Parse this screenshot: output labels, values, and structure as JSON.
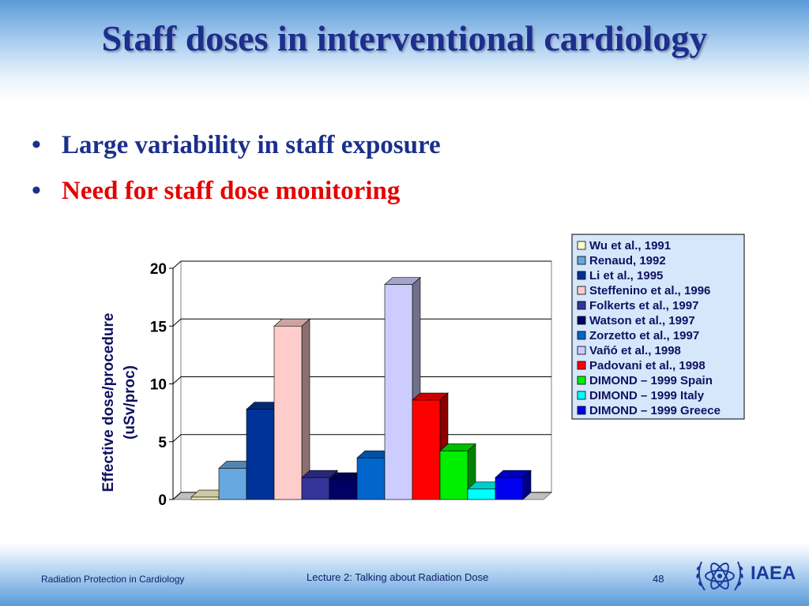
{
  "slide": {
    "title": "Staff doses in interventional cardiology",
    "bullets": [
      {
        "text": "Large variability in staff exposure",
        "color": "#1b2f8c"
      },
      {
        "text": "Need for staff dose monitoring",
        "color": "#e60000"
      }
    ]
  },
  "footer": {
    "left": "Radiation Protection in Cardiology",
    "center": "Lecture 2: Talking about Radiation Dose",
    "page": "48",
    "logo_text": "IAEA",
    "logo_icon": "atom-laurel-icon"
  },
  "chart_data": {
    "type": "bar",
    "style": "3d-column",
    "ylabel_lines": [
      "Effective dose/procedure",
      "(uSv/proc)"
    ],
    "ylim": [
      0,
      20
    ],
    "yticks": [
      0,
      5,
      10,
      15,
      20
    ],
    "grid": true,
    "legend_position": "top-right",
    "series": [
      {
        "name": "Wu et al., 1991",
        "value": 0.2,
        "color": "#fffccc"
      },
      {
        "name": "Renaud, 1992",
        "value": 2.7,
        "color": "#66a8df"
      },
      {
        "name": "Li et al., 1995",
        "value": 7.8,
        "color": "#003399"
      },
      {
        "name": "Steffenino et al., 1996",
        "value": 15,
        "color": "#ffcccc"
      },
      {
        "name": "Folkerts et al., 1997",
        "value": 1.9,
        "color": "#333399"
      },
      {
        "name": "Watson et al., 1997",
        "value": 1.7,
        "color": "#000066"
      },
      {
        "name": "Zorzetto et al., 1997",
        "value": 3.6,
        "color": "#0066cc"
      },
      {
        "name": "Vañó et al., 1998",
        "value": 18.6,
        "color": "#ccccff"
      },
      {
        "name": "Padovani et al., 1998",
        "value": 8.6,
        "color": "#ff0000"
      },
      {
        "name": "DIMOND – 1999 Spain",
        "value": 4.2,
        "color": "#00ee00"
      },
      {
        "name": "DIMOND – 1999 Italy",
        "value": 0.9,
        "color": "#00ffff"
      },
      {
        "name": "DIMOND – 1999 Greece",
        "value": 1.9,
        "color": "#0000ee"
      }
    ]
  }
}
